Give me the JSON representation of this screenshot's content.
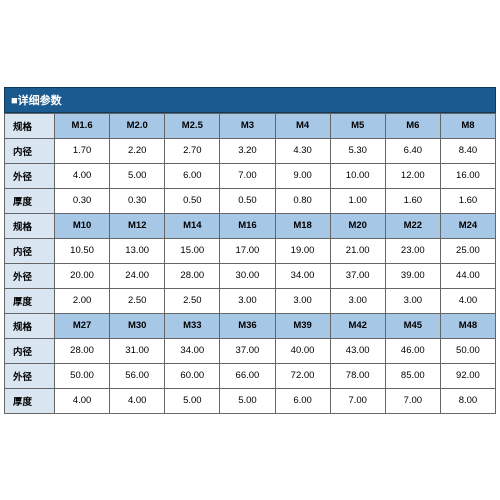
{
  "title": "■详细参数",
  "labels": {
    "spec": "规格",
    "inner": "内径",
    "outer": "外径",
    "thick": "厚度"
  },
  "colors": {
    "title_bg": "#1a5a8e",
    "title_text": "#ffffff",
    "label_bg": "#d9e6f2",
    "spec_bg": "#a7c7e7",
    "data_bg": "#ffffff",
    "border": "#666666"
  },
  "fontsize": {
    "title": 11,
    "cell": 9.5
  },
  "groups": [
    {
      "specs": [
        "M1.6",
        "M2.0",
        "M2.5",
        "M3",
        "M4",
        "M5",
        "M6",
        "M8"
      ],
      "inner": [
        "1.70",
        "2.20",
        "2.70",
        "3.20",
        "4.30",
        "5.30",
        "6.40",
        "8.40"
      ],
      "outer": [
        "4.00",
        "5.00",
        "6.00",
        "7.00",
        "9.00",
        "10.00",
        "12.00",
        "16.00"
      ],
      "thick": [
        "0.30",
        "0.30",
        "0.50",
        "0.50",
        "0.80",
        "1.00",
        "1.60",
        "1.60"
      ]
    },
    {
      "specs": [
        "M10",
        "M12",
        "M14",
        "M16",
        "M18",
        "M20",
        "M22",
        "M24"
      ],
      "inner": [
        "10.50",
        "13.00",
        "15.00",
        "17.00",
        "19.00",
        "21.00",
        "23.00",
        "25.00"
      ],
      "outer": [
        "20.00",
        "24.00",
        "28.00",
        "30.00",
        "34.00",
        "37.00",
        "39.00",
        "44.00"
      ],
      "thick": [
        "2.00",
        "2.50",
        "2.50",
        "3.00",
        "3.00",
        "3.00",
        "3.00",
        "4.00"
      ]
    },
    {
      "specs": [
        "M27",
        "M30",
        "M33",
        "M36",
        "M39",
        "M42",
        "M45",
        "M48"
      ],
      "inner": [
        "28.00",
        "31.00",
        "34.00",
        "37.00",
        "40.00",
        "43.00",
        "46.00",
        "50.00"
      ],
      "outer": [
        "50.00",
        "56.00",
        "60.00",
        "66.00",
        "72.00",
        "78.00",
        "85.00",
        "92.00"
      ],
      "thick": [
        "4.00",
        "4.00",
        "5.00",
        "5.00",
        "6.00",
        "7.00",
        "7.00",
        "8.00"
      ]
    }
  ]
}
